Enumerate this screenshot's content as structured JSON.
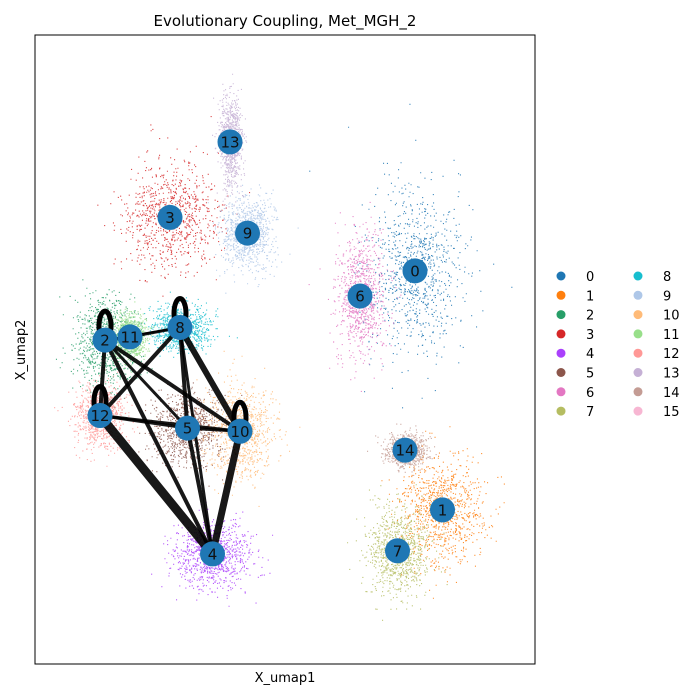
{
  "chart_data": {
    "type": "scatter",
    "title": "Evolutionary Coupling, Met_MGH_2",
    "xlabel": "X_umap1",
    "ylabel": "X_umap2",
    "xlim": [
      0,
      100
    ],
    "ylim": [
      0,
      100
    ],
    "legend_placement": "right",
    "clusters": [
      {
        "name": "0",
        "color": "#1f77b4",
        "x": 76.0,
        "y": 62.5
      },
      {
        "name": "1",
        "color": "#ff7f0e",
        "x": 81.5,
        "y": 24.5
      },
      {
        "name": "2",
        "color": "#279e68",
        "x": 14.0,
        "y": 51.5
      },
      {
        "name": "3",
        "color": "#d62728",
        "x": 27.0,
        "y": 71.0
      },
      {
        "name": "4",
        "color": "#aa40fc",
        "x": 35.5,
        "y": 17.5
      },
      {
        "name": "5",
        "color": "#8c564b",
        "x": 30.5,
        "y": 37.5
      },
      {
        "name": "6",
        "color": "#e377c2",
        "x": 65.0,
        "y": 58.5
      },
      {
        "name": "7",
        "color": "#b5bd61",
        "x": 72.5,
        "y": 18.0
      },
      {
        "name": "8",
        "color": "#17becf",
        "x": 29.0,
        "y": 53.5
      },
      {
        "name": "9",
        "color": "#aec7e8",
        "x": 42.5,
        "y": 68.5
      },
      {
        "name": "10",
        "color": "#ffbb78",
        "x": 41.0,
        "y": 37.0
      },
      {
        "name": "11",
        "color": "#98df8a",
        "x": 19.0,
        "y": 52.0
      },
      {
        "name": "12",
        "color": "#ff9896",
        "x": 13.0,
        "y": 39.5
      },
      {
        "name": "13",
        "color": "#c5b0d5",
        "x": 39.0,
        "y": 83.0
      },
      {
        "name": "14",
        "color": "#c49c94",
        "x": 74.0,
        "y": 34.0
      },
      {
        "name": "15",
        "color": "#f7b6d2",
        "x": null,
        "y": null
      }
    ],
    "edges": [
      {
        "source": "12",
        "target": "4",
        "weight": 9
      },
      {
        "source": "2",
        "target": "4",
        "weight": 4
      },
      {
        "source": "2",
        "target": "10",
        "weight": 4
      },
      {
        "source": "2",
        "target": "5",
        "weight": 3
      },
      {
        "source": "2",
        "target": "12",
        "weight": 4
      },
      {
        "source": "8",
        "target": "12",
        "weight": 4
      },
      {
        "source": "8",
        "target": "5",
        "weight": 4
      },
      {
        "source": "8",
        "target": "10",
        "weight": 6
      },
      {
        "source": "8",
        "target": "4",
        "weight": 3
      },
      {
        "source": "11",
        "target": "8",
        "weight": 3
      },
      {
        "source": "2",
        "target": "11",
        "weight": 3
      },
      {
        "source": "2",
        "target": "8",
        "weight": 2
      },
      {
        "source": "12",
        "target": "5",
        "weight": 3
      },
      {
        "source": "12",
        "target": "10",
        "weight": 3
      },
      {
        "source": "5",
        "target": "10",
        "weight": 3
      },
      {
        "source": "5",
        "target": "4",
        "weight": 4
      },
      {
        "source": "10",
        "target": "4",
        "weight": 7
      }
    ],
    "self_loops": [
      "2",
      "8",
      "12",
      "10"
    ]
  }
}
